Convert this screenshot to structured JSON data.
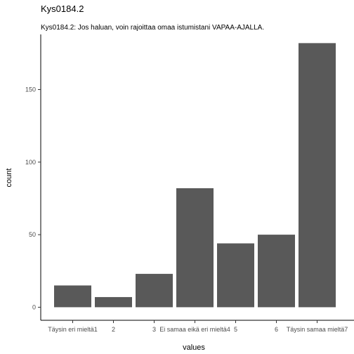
{
  "chart_data": {
    "type": "bar",
    "title": "Kys0184.2",
    "subtitle": "Kys0184.2: Jos haluan, voin rajoittaa omaa istumistani VAPAA-AJALLA.",
    "xlabel": "values",
    "ylabel": "count",
    "categories": [
      "Täysin eri mieltä1",
      "2",
      "3",
      "Ei samaa eikä eri mieltä4",
      "5",
      "6",
      "Täysin samaa mieltä7"
    ],
    "values": [
      15,
      7,
      23,
      82,
      44,
      50,
      182
    ],
    "ylim": [
      -9,
      188
    ],
    "yticks": [
      0,
      50,
      100,
      150
    ],
    "grid": false,
    "legend": "none"
  }
}
